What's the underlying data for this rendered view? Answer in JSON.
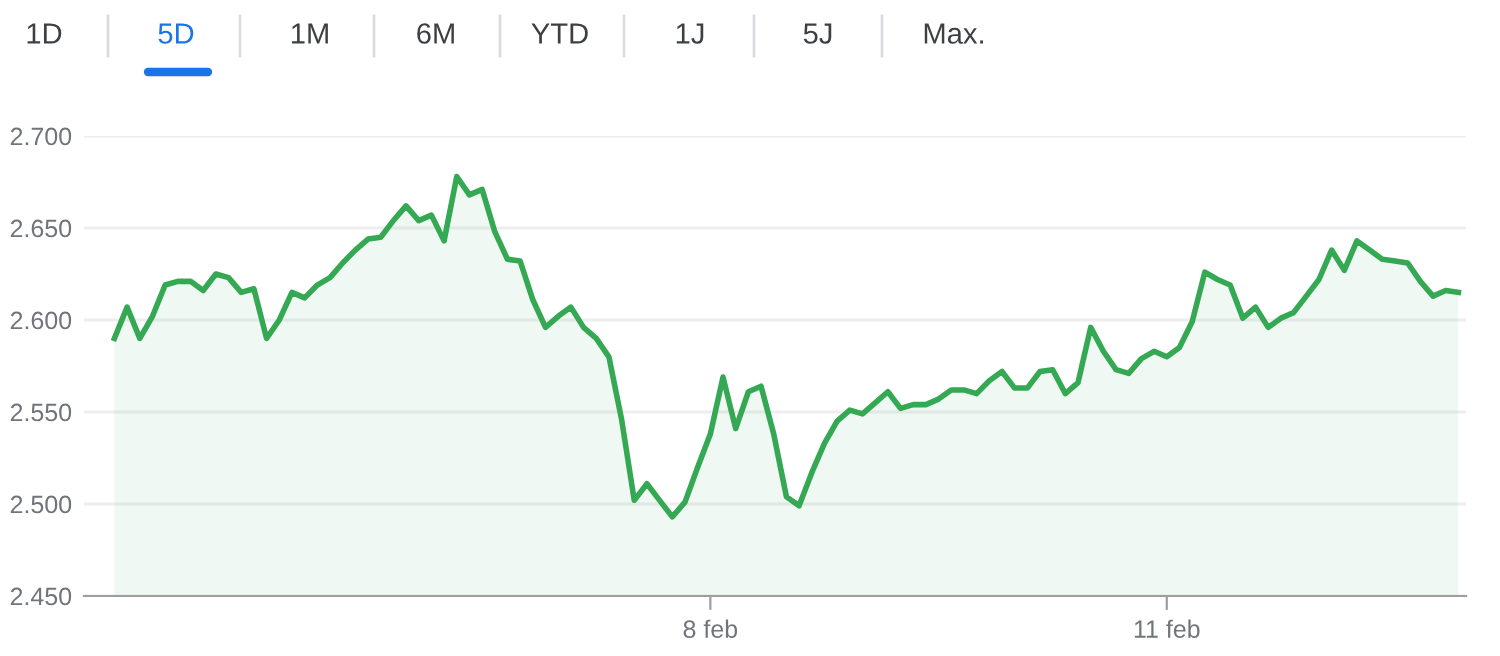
{
  "chart_data": {
    "type": "area",
    "annotations": [
      "1D",
      "5D",
      "1M",
      "6M",
      "YTD",
      "1J",
      "5J",
      "Max."
    ],
    "categories": [
      null,
      null,
      null,
      null,
      null,
      null,
      null,
      null,
      null,
      null,
      null,
      null,
      null,
      null,
      null,
      null,
      null,
      null,
      null,
      null,
      null,
      null,
      null,
      null,
      null,
      null,
      null,
      null,
      null,
      null,
      null,
      null,
      null,
      null,
      null,
      null,
      null,
      null,
      null,
      null,
      null,
      null,
      null,
      null,
      null,
      null,
      null,
      "8 feb",
      null,
      null,
      null,
      null,
      null,
      null,
      null,
      null,
      null,
      null,
      null,
      null,
      null,
      null,
      null,
      null,
      null,
      null,
      null,
      null,
      null,
      null,
      null,
      null,
      null,
      null,
      null,
      null,
      null,
      null,
      null,
      null,
      null,
      null,
      null,
      "11 feb",
      null,
      null,
      null,
      null,
      null,
      null,
      null,
      null,
      null,
      null,
      null,
      null,
      null,
      null,
      null,
      null,
      null,
      null,
      null,
      null,
      null,
      null,
      null
    ],
    "series": [
      {
        "color": "#34a853",
        "values": [
          2.59,
          2.607,
          2.59,
          2.602,
          2.619,
          2.621,
          2.621,
          2.616,
          2.625,
          2.623,
          2.615,
          2.617,
          2.59,
          2.6,
          2.615,
          2.612,
          2.619,
          2.623,
          2.631,
          2.638,
          2.644,
          2.645,
          2.654,
          2.662,
          2.654,
          2.657,
          2.643,
          2.678,
          2.668,
          2.671,
          2.648,
          2.633,
          2.632,
          2.611,
          2.596,
          2.602,
          2.607,
          2.596,
          2.59,
          2.58,
          2.546,
          2.502,
          2.511,
          2.502,
          2.493,
          2.501,
          2.52,
          2.538,
          2.569,
          2.541,
          2.561,
          2.564,
          2.538,
          2.504,
          2.499,
          2.517,
          2.533,
          2.545,
          2.551,
          2.549,
          2.555,
          2.561,
          2.552,
          2.554,
          2.554,
          2.557,
          2.562,
          2.562,
          2.56,
          2.567,
          2.572,
          2.563,
          2.563,
          2.572,
          2.573,
          2.56,
          2.566,
          2.596,
          2.583,
          2.573,
          2.571,
          2.579,
          2.583,
          2.58,
          2.585,
          2.599,
          2.626,
          2.622,
          2.619,
          2.601,
          2.607,
          2.596,
          2.601,
          2.604,
          2.613,
          2.622,
          2.638,
          2.627,
          2.643,
          2.638,
          2.633,
          2.632,
          2.631,
          2.621,
          2.613,
          2.616,
          2.615
        ]
      }
    ],
    "ylim": [
      2.45,
      2.7
    ],
    "yticks": [
      {
        "value": 2.45,
        "label": "2.450"
      },
      {
        "value": 2.5,
        "label": "2.500"
      },
      {
        "value": 2.55,
        "label": "2.550"
      },
      {
        "value": 2.6,
        "label": "2.600"
      },
      {
        "value": 2.65,
        "label": "2.650"
      },
      {
        "value": 2.7,
        "label": "2.700"
      }
    ],
    "grid": "y"
  }
}
